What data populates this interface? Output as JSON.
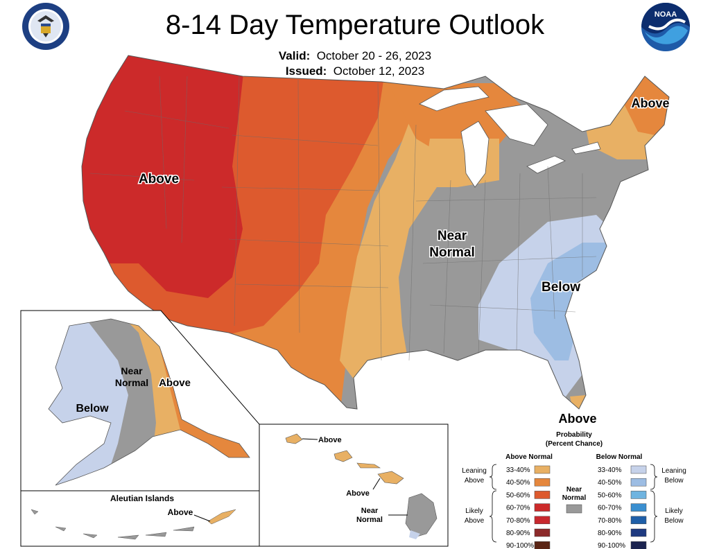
{
  "title": "8-14 Day Temperature Outlook",
  "valid_label": "Valid:",
  "valid_dates": "October 20 - 26, 2023",
  "issued_label": "Issued:",
  "issued_date": "October 12, 2023",
  "logos": {
    "left_seal_text": "DEPARTMENT OF COMMERCE · UNITED STATES OF AMERICA",
    "right_text": "NOAA"
  },
  "conus_labels": {
    "west": "Above",
    "northeast": "Above",
    "central_line1": "Near",
    "central_line2": "Normal",
    "southeast": "Below",
    "florida": "Above"
  },
  "alaska_labels": {
    "near_line1": "Near",
    "near_line2": "Normal",
    "east": "Above",
    "west": "Below",
    "aleutian_title": "Aleutian Islands",
    "aleutian": "Above"
  },
  "hawaii_labels": {
    "kauai": "Above",
    "maui": "Above",
    "big_island_line1": "Near",
    "big_island_line2": "Normal"
  },
  "legend": {
    "title_line1": "Probability",
    "title_line2": "(Percent Chance)",
    "above_header": "Above Normal",
    "below_header": "Below Normal",
    "near_line1": "Near",
    "near_line2": "Normal",
    "leaning_above_1": "Leaning",
    "leaning_above_2": "Above",
    "likely_above_1": "Likely",
    "likely_above_2": "Above",
    "leaning_below_1": "Leaning",
    "leaning_below_2": "Below",
    "likely_below_1": "Likely",
    "likely_below_2": "Below",
    "above_bins": [
      {
        "label": "33-40%",
        "color": "#e8b064"
      },
      {
        "label": "40-50%",
        "color": "#e5873d"
      },
      {
        "label": "50-60%",
        "color": "#dd5a2e"
      },
      {
        "label": "60-70%",
        "color": "#cc2a2a"
      },
      {
        "label": "70-80%",
        "color": "#c8282e"
      },
      {
        "label": "80-90%",
        "color": "#8c2a2a"
      },
      {
        "label": "90-100%",
        "color": "#5a2414"
      }
    ],
    "below_bins": [
      {
        "label": "33-40%",
        "color": "#c6d2ea"
      },
      {
        "label": "40-50%",
        "color": "#9dbde3"
      },
      {
        "label": "50-60%",
        "color": "#6fb4e0"
      },
      {
        "label": "60-70%",
        "color": "#3a8fd0"
      },
      {
        "label": "70-80%",
        "color": "#1f5fa8"
      },
      {
        "label": "80-90%",
        "color": "#1f3a80"
      },
      {
        "label": "90-100%",
        "color": "#1c2450"
      }
    ],
    "near_color": "#999999"
  }
}
